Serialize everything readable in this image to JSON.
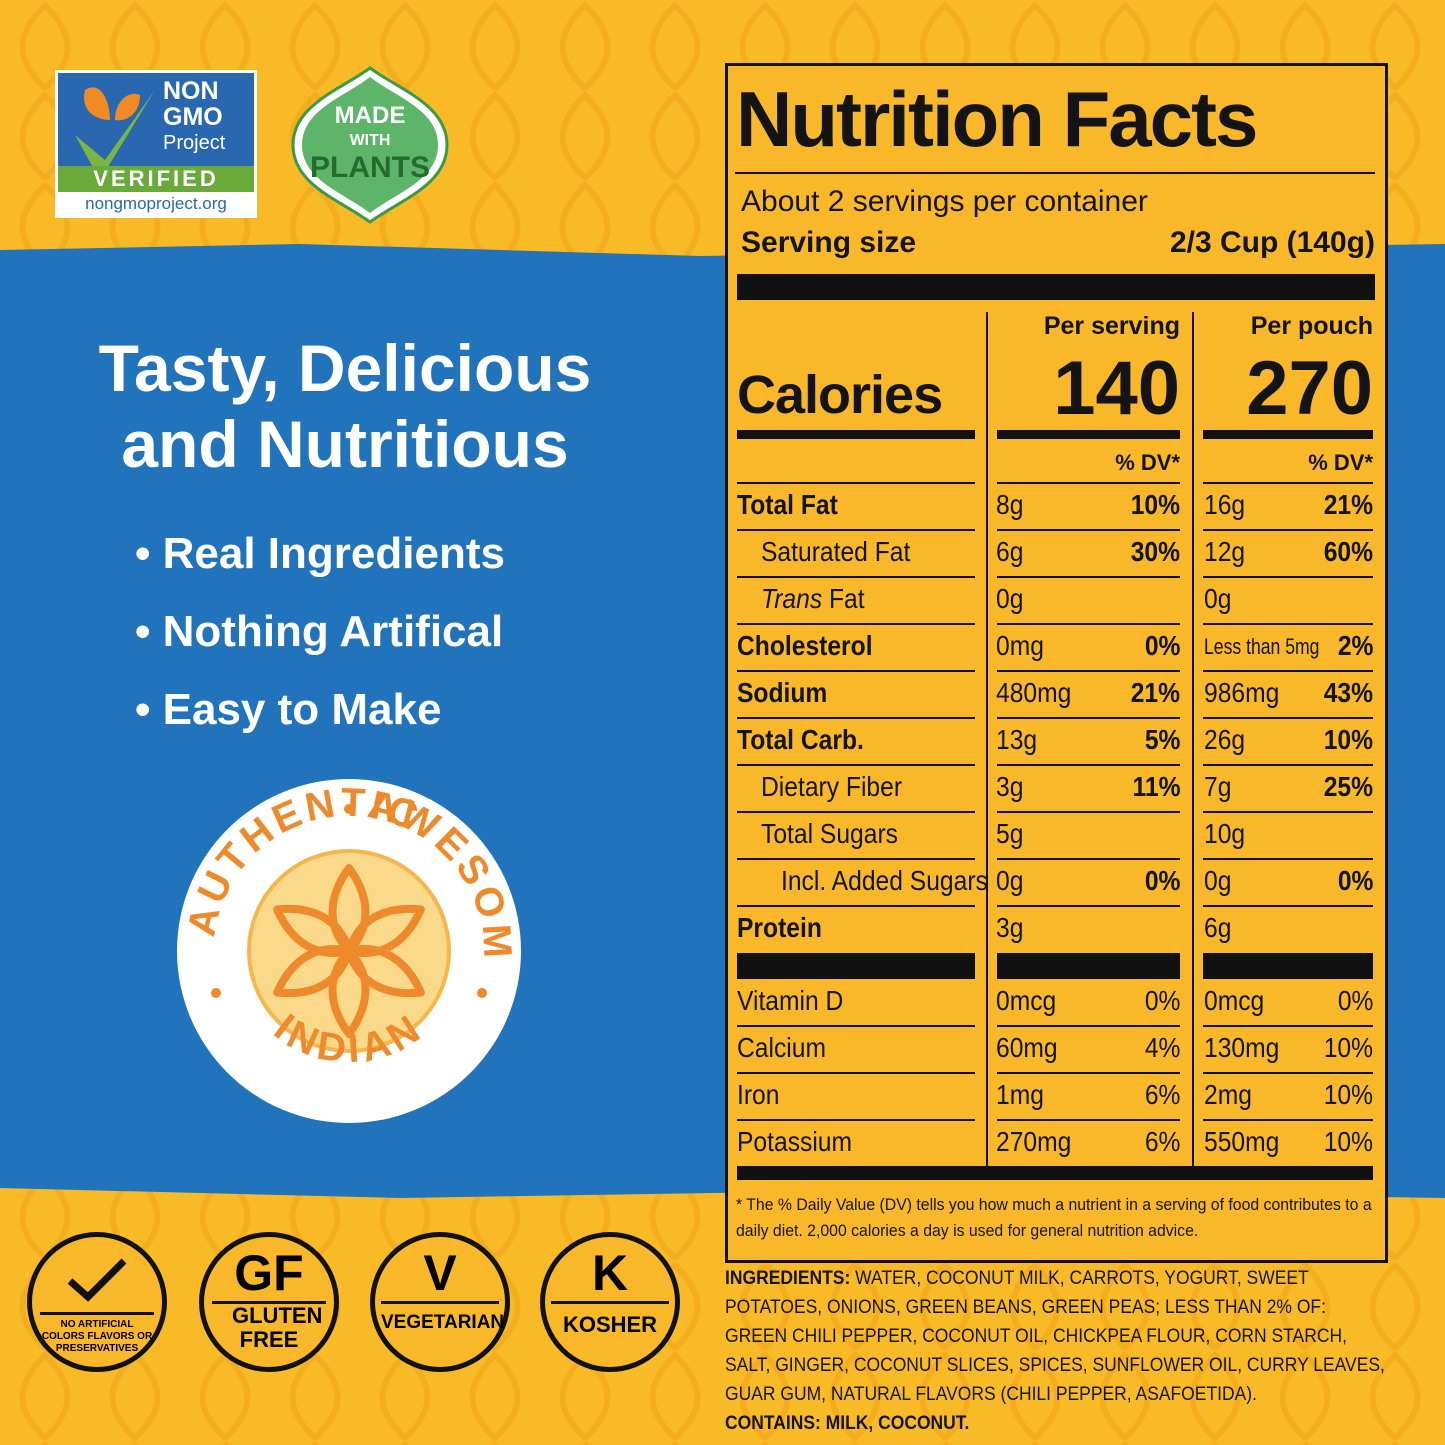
{
  "badges": {
    "non_gmo": {
      "line1": "NON",
      "line2": "GMO",
      "line3": "Project",
      "verified": "VERIFIED",
      "url": "nongmoproject.org"
    },
    "plants": {
      "made": "MADE",
      "with": "WITH",
      "plants": "PLANTS"
    }
  },
  "headline": [
    "Tasty, Delicious",
    "and Nutritious"
  ],
  "bullets": [
    "Real Ingredients",
    "Nothing Artifical",
    "Easy to Make"
  ],
  "seal": {
    "left": "AUTHENTIC",
    "right": "AWESOME",
    "bottom": "INDIAN"
  },
  "icons": [
    {
      "label": "NO ARTIFICIAL COLORS FLAVORS OR PRESERVATIVES"
    },
    {
      "big": "GF",
      "label": "GLUTEN FREE"
    },
    {
      "big": "V",
      "label": "VEGETARIAN"
    },
    {
      "big": "K",
      "label": "KOSHER"
    }
  ],
  "nutrition": {
    "title": "Nutrition Facts",
    "servings": "About 2 servings per container",
    "serving_size_label": "Serving size",
    "serving_size": "2/3 Cup (140g)",
    "col_serving": "Per serving",
    "col_pouch": "Per pouch",
    "calories_label": "Calories",
    "calories_serving": 140,
    "calories_pouch": 270,
    "dv_header": "% DV*",
    "nutrients": [
      {
        "name": "Total Fat",
        "amount_serving": "8g",
        "dv_serving": "10%",
        "amount_pouch": "16g",
        "dv_pouch": "21%"
      },
      {
        "name": "Saturated Fat",
        "amount_serving": "6g",
        "dv_serving": "30%",
        "amount_pouch": "12g",
        "dv_pouch": "60%"
      },
      {
        "name_italic": "Trans",
        "name": "Fat",
        "amount_serving": "0g",
        "amount_pouch": "0g"
      },
      {
        "name": "Cholesterol",
        "amount_serving": "0mg",
        "dv_serving": "0%",
        "amount_pouch": "Less than 5mg",
        "dv_pouch": "2%"
      },
      {
        "name": "Sodium",
        "amount_serving": "480mg",
        "dv_serving": "21%",
        "amount_pouch": "986mg",
        "dv_pouch": "43%"
      },
      {
        "name": "Total Carb.",
        "amount_serving": "13g",
        "dv_serving": "5%",
        "amount_pouch": "26g",
        "dv_pouch": "10%"
      },
      {
        "name": "Dietary Fiber",
        "amount_serving": "3g",
        "dv_serving": "11%",
        "amount_pouch": "7g",
        "dv_pouch": "25%"
      },
      {
        "name": "Total Sugars",
        "amount_serving": "5g",
        "amount_pouch": "10g"
      },
      {
        "name": "Incl. Added Sugars",
        "amount_serving": "0g",
        "dv_serving": "0%",
        "amount_pouch": "0g",
        "dv_pouch": "0%"
      },
      {
        "name": "Protein",
        "amount_serving": "3g",
        "amount_pouch": "6g"
      }
    ],
    "vitamins": [
      {
        "name": "Vitamin D",
        "amount_serving": "0mcg",
        "dv_serving": "0%",
        "amount_pouch": "0mcg",
        "dv_pouch": "0%"
      },
      {
        "name": "Calcium",
        "amount_serving": "60mg",
        "dv_serving": "4%",
        "amount_pouch": "130mg",
        "dv_pouch": "10%"
      },
      {
        "name": "Iron",
        "amount_serving": "1mg",
        "dv_serving": "6%",
        "amount_pouch": "2mg",
        "dv_pouch": "10%"
      },
      {
        "name": "Potassium",
        "amount_serving": "270mg",
        "dv_serving": "6%",
        "amount_pouch": "550mg",
        "dv_pouch": "10%"
      }
    ],
    "footnote": "* The % Daily Value (DV) tells you how much a nutrient in a serving of food contributes to a daily diet. 2,000 calories a day is used for general nutrition advice.",
    "ingredients_label": "INGREDIENTS:",
    "ingredients": "WATER, COCONUT MILK, CARROTS, YOGURT, SWEET POTATOES, ONIONS, GREEN BEANS, GREEN PEAS; LESS THAN 2% OF: GREEN CHILI PEPPER, COCONUT OIL, CHICKPEA FLOUR, CORN STARCH, SALT, GINGER, COCONUT SLICES, SPICES, SUNFLOWER OIL, CURRY LEAVES, GUAR GUM, NATURAL FLAVORS (CHILI PEPPER, ASAFOETIDA).",
    "contains_label": "CONTAINS:",
    "contains": "MILK, COCONUT."
  }
}
